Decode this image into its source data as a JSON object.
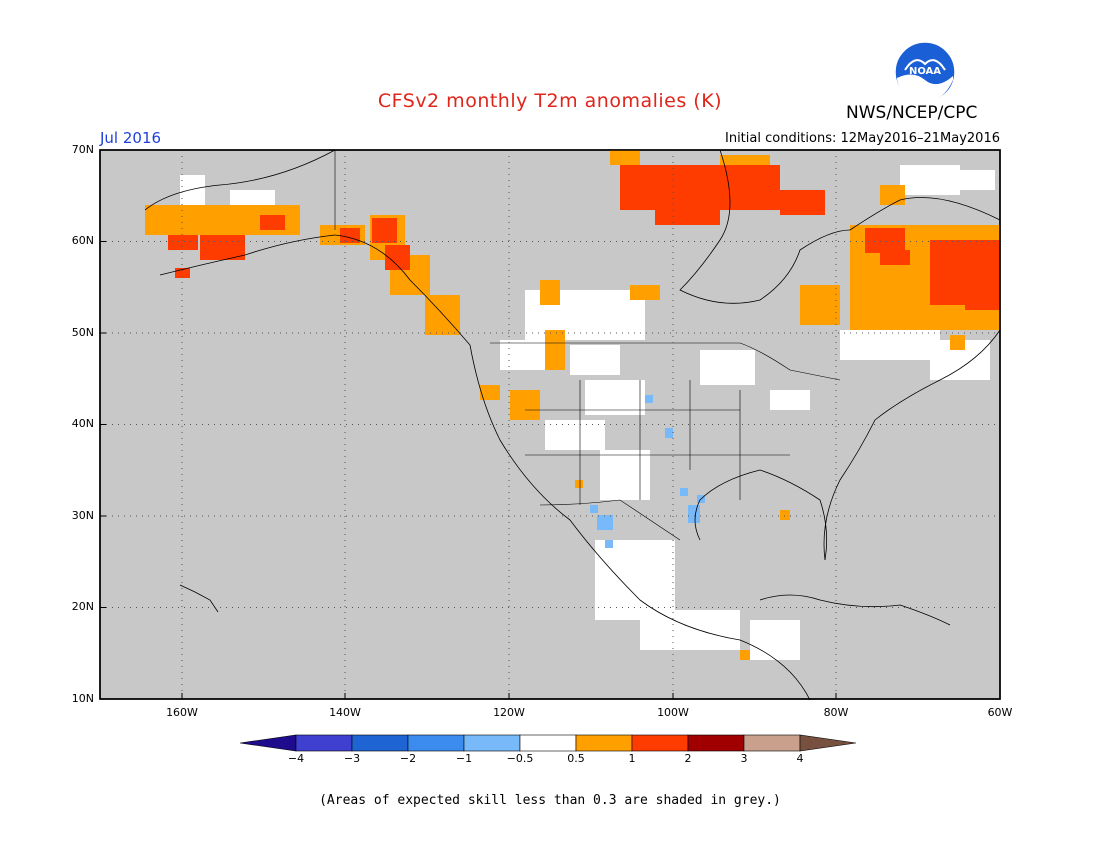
{
  "header": {
    "title": "CFSv2 monthly T2m anomalies (K)",
    "agency": "NWS/NCEP/CPC",
    "logo_text": "NOAA",
    "month": "Jul 2016",
    "initial_conditions": "Initial conditions: 12May2016–21May2016"
  },
  "map": {
    "projection": "lat-lon",
    "lon_range": [
      -170,
      -60
    ],
    "lat_range": [
      10,
      70
    ],
    "grid": "dotted",
    "lat_labels": [
      "70N",
      "60N",
      "50N",
      "40N",
      "30N",
      "20N",
      "10N"
    ],
    "lon_labels": [
      "160W",
      "140W",
      "120W",
      "100W",
      "80W",
      "60W"
    ],
    "background_color": "#c8c8c8",
    "low_skill_note": "grey = expected skill below 0.3"
  },
  "colorbar": {
    "labels": [
      "−4",
      "−3",
      "−2",
      "−1",
      "−0.5",
      "0.5",
      "1",
      "2",
      "3",
      "4"
    ],
    "colors": [
      "#1e0c8c",
      "#3f3fd0",
      "#1e64d2",
      "#3c8cf0",
      "#78b9fa",
      "#ffffff",
      "#ffa000",
      "#ff3c00",
      "#a00000",
      "#c8a08c",
      "#785040"
    ]
  },
  "anomaly_regions": [
    {
      "name": "alaska-west",
      "category": "0.5-1",
      "lon": [
        -165,
        -150
      ],
      "lat": [
        58,
        63
      ]
    },
    {
      "name": "alaska-sw",
      "category": "1-2",
      "lon": [
        -162,
        -152
      ],
      "lat": [
        57,
        61
      ]
    },
    {
      "name": "alaska-panhandle",
      "category": "1-2",
      "lon": [
        -138,
        -131
      ],
      "lat": [
        55,
        61
      ]
    },
    {
      "name": "arctic-islands",
      "category": "1-2",
      "lon": [
        -103,
        -90
      ],
      "lat": [
        64,
        69
      ]
    },
    {
      "name": "baffin",
      "category": "1-2",
      "lon": [
        -84,
        -79
      ],
      "lat": [
        64,
        67
      ]
    },
    {
      "name": "quebec-labrador",
      "category": "0.5-1",
      "lon": [
        -80,
        -60
      ],
      "lat": [
        51,
        62
      ]
    },
    {
      "name": "quebec-warm-core",
      "category": "1-2",
      "lon": [
        -76,
        -60
      ],
      "lat": [
        53,
        61
      ]
    },
    {
      "name": "nw-usa",
      "category": "0.5-1",
      "lon": [
        -118,
        -112
      ],
      "lat": [
        46,
        50
      ]
    },
    {
      "name": "great-basin",
      "category": "0.5-1",
      "lon": [
        -119,
        -116
      ],
      "lat": [
        40,
        43
      ]
    },
    {
      "name": "sw-usa-cool",
      "category": "-1 to -0.5",
      "lon": [
        -110,
        -108
      ],
      "lat": [
        28,
        32
      ]
    },
    {
      "name": "texas-cool",
      "category": "-1 to -0.5",
      "lon": [
        -99,
        -96
      ],
      "lat": [
        30,
        33
      ]
    }
  ],
  "footnote": "(Areas of expected skill less than 0.3 are shaded in grey.)"
}
